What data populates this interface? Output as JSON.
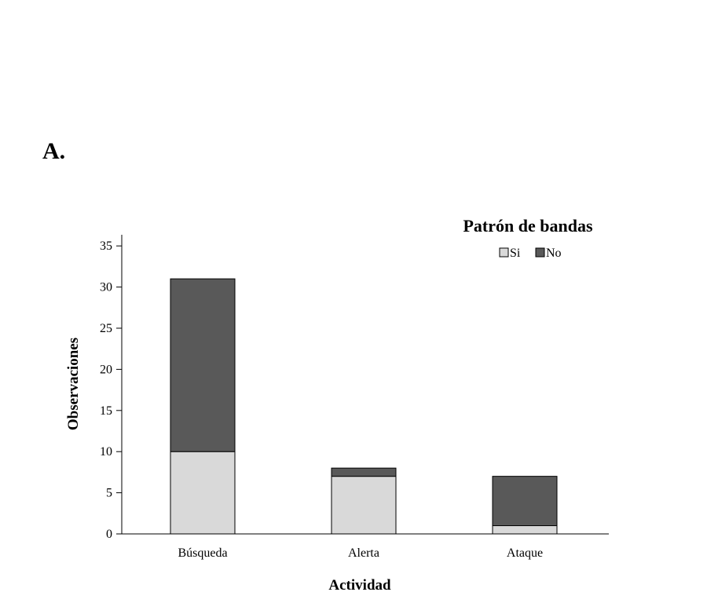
{
  "panel_label": "A.",
  "chart_data": {
    "type": "bar",
    "stacked": true,
    "categories": [
      "Búsqueda",
      "Alerta",
      "Ataque"
    ],
    "series": [
      {
        "name": "Si",
        "values": [
          10,
          7,
          1
        ],
        "color": "#d9d9d9"
      },
      {
        "name": "No",
        "values": [
          21,
          1,
          6
        ],
        "color": "#595959"
      }
    ],
    "xlabel": "Actividad",
    "ylabel": "Observaciones",
    "ylim": [
      0,
      36
    ],
    "yticks": [
      0,
      5,
      10,
      15,
      20,
      25,
      30,
      35
    ],
    "grid": false,
    "legend": {
      "title": "Patrón de bandas",
      "position": "top-right"
    }
  }
}
